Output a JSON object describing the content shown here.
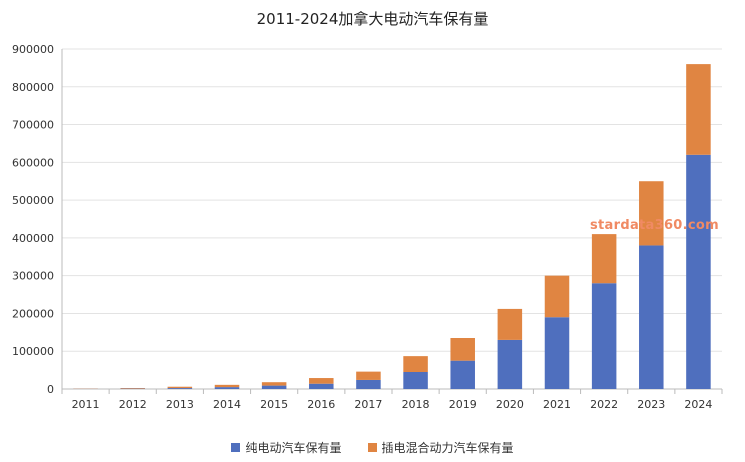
{
  "chart_data": {
    "type": "bar",
    "stacked": true,
    "title": "2011-2024加拿大电动汽车保有量",
    "xlabel": "",
    "ylabel": "",
    "categories": [
      "2011",
      "2012",
      "2013",
      "2014",
      "2015",
      "2016",
      "2017",
      "2018",
      "2019",
      "2020",
      "2021",
      "2022",
      "2023",
      "2024"
    ],
    "series": [
      {
        "name": "纯电动汽车保有量",
        "color": "#4f6fbe",
        "values": [
          500,
          1000,
          2500,
          5000,
          9000,
          14000,
          24000,
          45000,
          75000,
          130000,
          190000,
          280000,
          380000,
          620000
        ]
      },
      {
        "name": "插电混合动力汽车保有量",
        "color": "#e08542",
        "values": [
          600,
          1500,
          3500,
          6000,
          9000,
          15000,
          22000,
          42000,
          60000,
          82000,
          110000,
          130000,
          170000,
          240000
        ]
      }
    ],
    "ylim": [
      0,
      900000
    ],
    "yticks": [
      "0",
      "100000",
      "200000",
      "300000",
      "400000",
      "500000",
      "600000",
      "700000",
      "800000",
      "900000"
    ],
    "grid": true,
    "legend_position": "bottom"
  },
  "watermark": "stardata360.com"
}
